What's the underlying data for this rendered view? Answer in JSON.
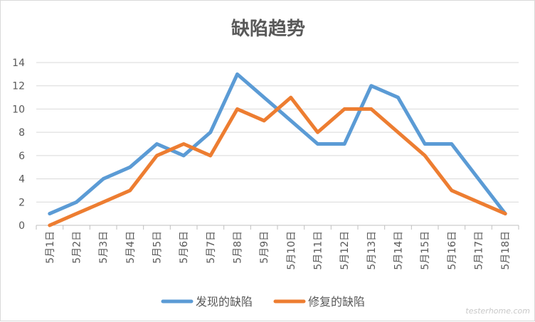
{
  "chart_data": {
    "type": "line",
    "title": "缺陷趋势",
    "categories": [
      "5月1日",
      "5月2日",
      "5月3日",
      "5月4日",
      "5月5日",
      "5月6日",
      "5月7日",
      "5月8日",
      "5月9日",
      "5月10日",
      "5月11日",
      "5月12日",
      "5月13日",
      "5月14日",
      "5月15日",
      "5月16日",
      "5月17日",
      "5月18日"
    ],
    "series": [
      {
        "name": "发现的缺陷",
        "color": "#5b9bd5",
        "values": [
          1,
          2,
          4,
          5,
          7,
          6,
          8,
          13,
          11,
          9,
          7,
          7,
          12,
          11,
          7,
          7,
          4,
          1
        ]
      },
      {
        "name": "修复的缺陷",
        "color": "#ed7d31",
        "values": [
          0,
          1,
          2,
          3,
          6,
          7,
          6,
          10,
          9,
          11,
          8,
          10,
          10,
          8,
          6,
          3,
          2,
          1
        ]
      }
    ],
    "ylim": [
      0,
      14
    ],
    "yticks": [
      0,
      2,
      4,
      6,
      8,
      10,
      12,
      14
    ],
    "grid": true,
    "legend_position": "bottom"
  },
  "watermark": "testerhome.com"
}
